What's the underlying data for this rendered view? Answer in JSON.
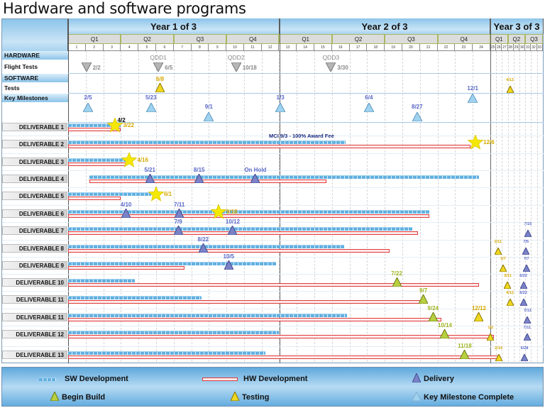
{
  "title": "Hardware and software programs",
  "chart_data": {
    "type": "gantt",
    "years": [
      "Year 1 of 3",
      "Year 2 of 3",
      "Year 3 of 3"
    ],
    "quarters": [
      {
        "year": 1,
        "labels": [
          "Q1",
          "Q2",
          "Q3",
          "Q4"
        ]
      },
      {
        "year": 2,
        "labels": [
          "Q1",
          "Q2",
          "Q3",
          "Q4"
        ]
      },
      {
        "year": 3,
        "labels": [
          "Q1",
          "Q2",
          "Q3"
        ]
      }
    ],
    "months": [
      "1",
      "2",
      "3",
      "4",
      "5",
      "6",
      "7",
      "8",
      "9",
      "10",
      "11",
      "12",
      "13",
      "14",
      "15",
      "16",
      "17",
      "18",
      "19",
      "20",
      "21",
      "22",
      "23",
      "24",
      "25",
      "26",
      "27",
      "28",
      "29",
      "30",
      "31",
      "32",
      "33"
    ],
    "sections": {
      "hardware": "HARDWARE",
      "flight_tests": "Flight Tests",
      "software": "SOFTWARE",
      "tests": "Tests",
      "key_milestones": "Key Milestones"
    },
    "flight_tests": [
      {
        "year": 1,
        "date": "2/2",
        "name": ""
      },
      {
        "year": 1,
        "date": "6/5",
        "name": "QDD1"
      },
      {
        "year": 1,
        "date": "10/18",
        "name": "QDD2"
      },
      {
        "year": 2,
        "date": "3/30",
        "name": "QDD3"
      }
    ],
    "tests": [
      {
        "type": "testing",
        "year": 1,
        "date": "6/8"
      },
      {
        "type": "testing",
        "year": 3,
        "date": "4/12"
      }
    ],
    "key_milestones": [
      {
        "year": 1,
        "date": "2/5"
      },
      {
        "year": 1,
        "date": "5/23"
      },
      {
        "year": 1,
        "date": "9/1"
      },
      {
        "year": 2,
        "date": "1/3"
      },
      {
        "year": 2,
        "date": "6/4"
      },
      {
        "year": 2,
        "date": "8/27"
      },
      {
        "year": 2,
        "date": "12/1"
      }
    ],
    "deliverables": [
      {
        "label": "DELIVERABLE 1",
        "sw": [
          [
            1,
            "1/1"
          ],
          [
            1,
            "4/1"
          ]
        ],
        "hw": [
          [
            1,
            "1/1"
          ],
          [
            1,
            "4/1"
          ]
        ],
        "markers": [
          {
            "type": "key-complete",
            "year": 1,
            "date": "3/22"
          },
          {
            "type": "note",
            "year": 1,
            "date": "4/2"
          }
        ]
      },
      {
        "label": "DELIVERABLE 2",
        "sw": [
          [
            1,
            "1/1"
          ],
          [
            2,
            "4/25"
          ]
        ],
        "hw": [
          [
            1,
            "1/1"
          ],
          [
            2,
            "11/28"
          ]
        ],
        "note": "MCI 9/3 - 100% Award Fee",
        "markers": [
          {
            "type": "key-complete",
            "year": 2,
            "date": "12/6"
          }
        ]
      },
      {
        "label": "DELIVERABLE 3",
        "sw": [
          [
            1,
            "1/1"
          ],
          [
            1,
            "4/10"
          ]
        ],
        "hw": [
          [
            1,
            "1/1"
          ],
          [
            1,
            "4/10"
          ]
        ],
        "markers": [
          {
            "type": "key-complete",
            "year": 1,
            "date": "4/16"
          }
        ]
      },
      {
        "label": "DELIVERABLE 4",
        "sw": [
          [
            1,
            "2/8"
          ],
          [
            2,
            "12/12"
          ]
        ],
        "hw": [
          [
            1,
            "2/8"
          ],
          [
            2,
            "3/22"
          ]
        ],
        "markers": [
          {
            "type": "delivery",
            "year": 1,
            "date": "5/21"
          },
          {
            "type": "delivery",
            "year": 1,
            "date": "8/15"
          },
          {
            "type": "delivery",
            "year": 1,
            "date": "11/21",
            "label": "On Hold"
          }
        ]
      },
      {
        "label": "DELIVERABLE 5",
        "sw": [
          [
            1,
            "1/1"
          ],
          [
            1,
            "5/23"
          ]
        ],
        "hw": [
          [
            1,
            "1/1"
          ],
          [
            1,
            "4/1"
          ]
        ],
        "markers": [
          {
            "type": "key-complete",
            "year": 1,
            "date": "6/1"
          }
        ]
      },
      {
        "label": "DELIVERABLE 6",
        "sw": [
          [
            1,
            "1/1"
          ],
          [
            2,
            "9/18"
          ]
        ],
        "hw": [
          [
            1,
            "1/1"
          ],
          [
            2,
            "9/18"
          ]
        ],
        "markers": [
          {
            "type": "delivery",
            "year": 1,
            "date": "4/10"
          },
          {
            "type": "delivery",
            "year": 1,
            "date": "7/11"
          },
          {
            "type": "key-complete",
            "year": 1,
            "date": "9/18"
          }
        ]
      },
      {
        "label": "DELIVERABLE 7",
        "sw": [
          [
            1,
            "1/1"
          ],
          [
            2,
            "8/18"
          ]
        ],
        "hw": [
          [
            1,
            "1/1"
          ],
          [
            2,
            "8/29"
          ]
        ],
        "markers": [
          {
            "type": "delivery",
            "year": 1,
            "date": "7/9"
          },
          {
            "type": "delivery",
            "year": 1,
            "date": "10/12"
          },
          {
            "type": "delivery",
            "year": 3,
            "date": "7/15"
          }
        ]
      },
      {
        "label": "DELIVERABLE 8",
        "sw": [
          [
            1,
            "1/1"
          ],
          [
            2,
            "4/22"
          ]
        ],
        "hw": [
          [
            1,
            "1/1"
          ],
          [
            2,
            "7/9"
          ]
        ],
        "markers": [
          {
            "type": "delivery",
            "year": 1,
            "date": "8/22"
          },
          {
            "type": "testing",
            "year": 3,
            "date": "2/11"
          },
          {
            "type": "delivery",
            "year": 3,
            "date": "7/5"
          }
        ]
      },
      {
        "label": "DELIVERABLE 9",
        "sw": [
          [
            1,
            "1/1"
          ],
          [
            1,
            "12/26"
          ]
        ],
        "hw": [
          [
            1,
            "1/1"
          ],
          [
            1,
            "7/20"
          ]
        ],
        "markers": [
          {
            "type": "delivery",
            "year": 1,
            "date": "10/5"
          },
          {
            "type": "testing",
            "year": 3,
            "date": "3/7"
          },
          {
            "type": "delivery",
            "year": 3,
            "date": "7/7"
          }
        ]
      },
      {
        "label": "DELIVERABLE 10",
        "sw": [
          [
            1,
            "1/1"
          ],
          [
            1,
            "4/26"
          ]
        ],
        "hw": [
          [
            1,
            "1/1"
          ],
          [
            2,
            "12/12"
          ]
        ],
        "markers": [
          {
            "type": "begin-build",
            "year": 2,
            "date": "7/22"
          },
          {
            "type": "testing",
            "year": 3,
            "date": "3/31"
          },
          {
            "type": "delivery",
            "year": 3,
            "date": "6/22"
          }
        ]
      },
      {
        "label": "DELIVERABLE 11",
        "sw": [
          [
            1,
            "1/1"
          ],
          [
            1,
            "8/19"
          ]
        ],
        "hw": [
          [
            1,
            "1/1"
          ],
          [
            2,
            "9/3"
          ]
        ],
        "markers": [
          {
            "type": "begin-build",
            "year": 2,
            "date": "9/7"
          },
          {
            "type": "testing",
            "year": 3,
            "date": "4/12"
          },
          {
            "type": "delivery",
            "year": 3,
            "date": "6/22"
          }
        ]
      },
      {
        "label": "DELIVERABLE 11",
        "sw": [
          [
            1,
            "1/1"
          ],
          [
            2,
            "4/27"
          ]
        ],
        "hw": [
          [
            1,
            "1/1"
          ],
          [
            2,
            "10/8"
          ]
        ],
        "markers": [
          {
            "type": "begin-build",
            "year": 2,
            "date": "9/24"
          },
          {
            "type": "testing",
            "year": 2,
            "date": "12/12"
          },
          {
            "type": "delivery",
            "year": 3,
            "date": "7/13"
          }
        ]
      },
      {
        "label": "DELIVERABLE 12",
        "sw": [
          [
            1,
            "1/1"
          ],
          [
            1,
            "12/31"
          ]
        ],
        "hw": [
          [
            1,
            "1/1"
          ],
          [
            3,
            "1/20"
          ]
        ],
        "markers": [
          {
            "type": "begin-build",
            "year": 2,
            "date": "10/14"
          },
          {
            "type": "testing",
            "year": 3,
            "date": "1/2"
          },
          {
            "type": "delivery",
            "year": 3,
            "date": "7/11"
          }
        ]
      },
      {
        "label": "DELIVERABLE 13",
        "sw": [
          [
            1,
            "1/1"
          ],
          [
            1,
            "12/8"
          ]
        ],
        "hw": [
          [
            1,
            "1/1"
          ],
          [
            3,
            "2/20"
          ]
        ],
        "markers": [
          {
            "type": "begin-build",
            "year": 2,
            "date": "11/18"
          },
          {
            "type": "testing",
            "year": 3,
            "date": "2/14"
          },
          {
            "type": "delivery",
            "year": 3,
            "date": "6/28"
          }
        ]
      }
    ],
    "legend": {
      "sw": "SW Development",
      "hw": "HW Development",
      "delivery": "Delivery",
      "begin_build": "Begin Build",
      "testing": "Testing",
      "key_complete": "Key Milestone Complete"
    },
    "colors": {
      "sw": "#62b0e0",
      "hw": "#e03a3a",
      "delivery": "#7a82c8",
      "delivery_label": "#5a68c8",
      "begin_build": "#b8d040",
      "begin_build_label": "#a0b420",
      "testing": "#f0d820",
      "testing_label": "#d4a800",
      "key_milestone": "#9fd2ee",
      "star": "#f5e800",
      "flight_test": "#9a9a9a"
    }
  }
}
